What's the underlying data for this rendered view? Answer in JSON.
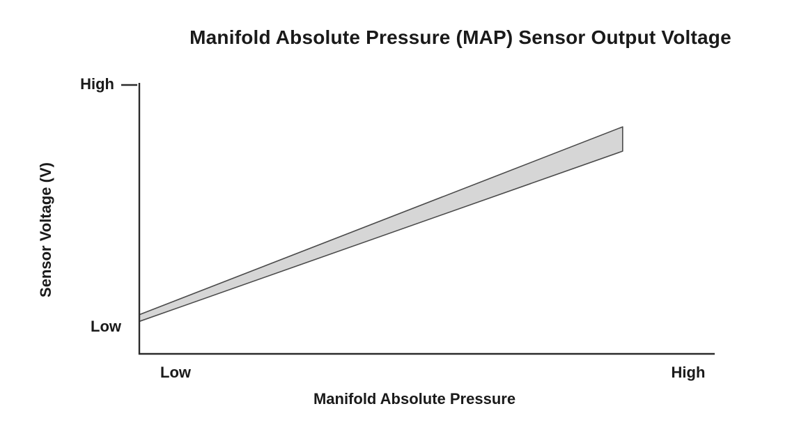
{
  "chart_data": {
    "type": "area",
    "title": "Manifold Absolute Pressure (MAP) Sensor Output Voltage",
    "xlabel": "Manifold Absolute Pressure",
    "ylabel": "Sensor Voltage (V)",
    "x_tick_labels": [
      "Low",
      "High"
    ],
    "y_tick_labels": [
      "Low",
      "High"
    ],
    "xlim": [
      0,
      1
    ],
    "ylim": [
      0,
      1
    ],
    "grid": false,
    "legend": false,
    "band": {
      "x": [
        0,
        0.84
      ],
      "y_lower": [
        0.12,
        0.75
      ],
      "y_upper": [
        0.145,
        0.84
      ]
    },
    "colors": {
      "band_fill": "#d6d6d6",
      "band_stroke": "#4a4a4a",
      "axis": "#2b2b2b",
      "text": "#1a1a1a"
    }
  }
}
